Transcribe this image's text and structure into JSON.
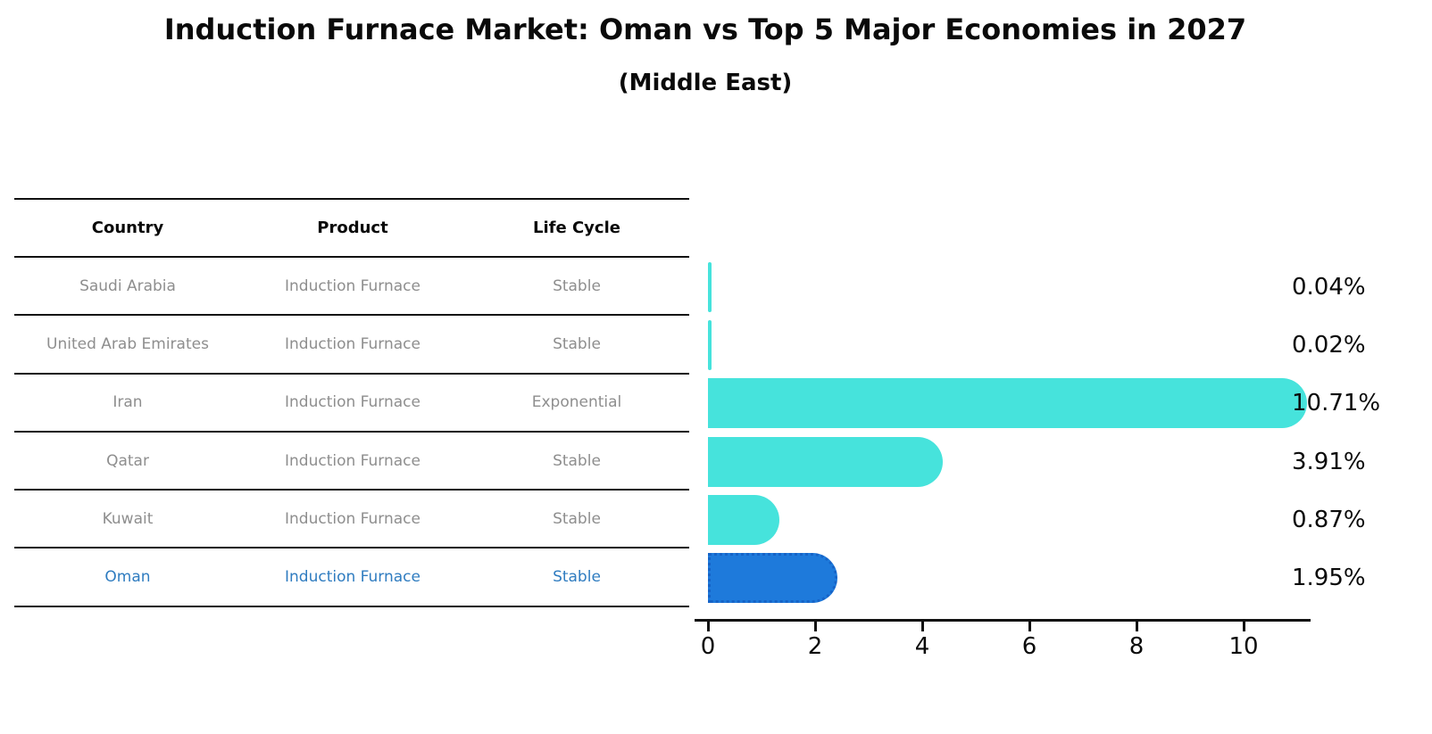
{
  "title": "Induction Furnace Market: Oman vs Top 5 Major Economies in 2027",
  "subtitle": "(Middle East)",
  "table": {
    "headers": [
      "Country",
      "Product",
      "Life Cycle"
    ],
    "rows": [
      {
        "country": "Saudi Arabia",
        "product": "Induction Furnace",
        "life_cycle": "Stable",
        "highlight": false
      },
      {
        "country": "United Arab Emirates",
        "product": "Induction Furnace",
        "life_cycle": "Stable",
        "highlight": false
      },
      {
        "country": "Iran",
        "product": "Induction Furnace",
        "life_cycle": "Exponential",
        "highlight": false
      },
      {
        "country": "Qatar",
        "product": "Induction Furnace",
        "life_cycle": "Stable",
        "highlight": false
      },
      {
        "country": "Kuwait",
        "product": "Induction Furnace",
        "life_cycle": "Stable",
        "highlight": true
      }
    ],
    "highlight_row": {
      "country": "Oman",
      "product": "Induction Furnace",
      "life_cycle": "Stable"
    }
  },
  "chart_data": {
    "type": "bar",
    "orientation": "horizontal",
    "categories": [
      "Saudi Arabia",
      "United Arab Emirates",
      "Iran",
      "Qatar",
      "Kuwait",
      "Oman"
    ],
    "values": [
      0.04,
      0.02,
      10.71,
      3.91,
      0.87,
      1.95
    ],
    "value_labels": [
      "0.04%",
      "0.02%",
      "10.71%",
      "3.91%",
      "0.87%",
      "1.95%"
    ],
    "highlight_index": 5,
    "highlight_category": "Oman",
    "xlim": [
      0,
      11.25
    ],
    "xticks": [
      "0",
      "2",
      "4",
      "6",
      "8",
      "10"
    ],
    "grid": false,
    "legend": false,
    "title": "Induction Furnace Market: Oman vs Top 5 Major Economies in 2027",
    "xlabel": "",
    "ylabel": ""
  },
  "colors": {
    "bar_default": "#46e3dc",
    "bar_highlight": "#1e7adb",
    "bar_highlight_edge": "#1663c7",
    "highlight_text": "#2f7cc0",
    "table_text": "#8e8e8e",
    "heading_text": "#0a0a0a"
  }
}
